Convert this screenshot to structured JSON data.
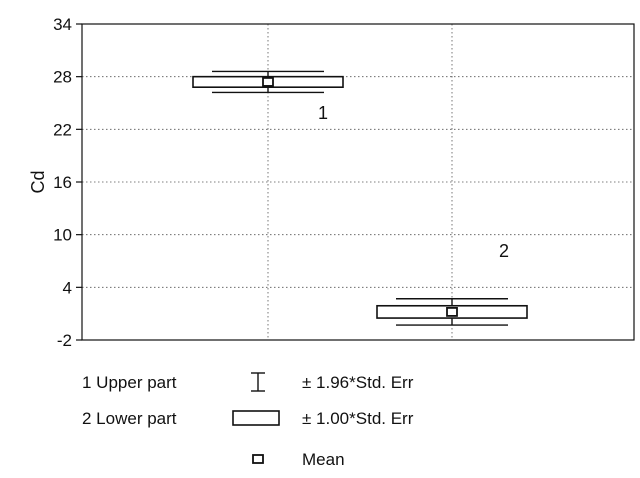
{
  "chart_data": {
    "type": "box",
    "ylabel": "Cd",
    "xlabel": "",
    "title": "",
    "ylim": [
      -2,
      34
    ],
    "yticks": [
      -2,
      4,
      10,
      16,
      22,
      28,
      34
    ],
    "grid": true,
    "groups": [
      {
        "id": "1",
        "name": "Upper part",
        "mean": 27.4,
        "se_low": 26.8,
        "se_high": 28.0,
        "ci_low": 26.2,
        "ci_high": 28.6,
        "label": "1"
      },
      {
        "id": "2",
        "name": "Lower part",
        "mean": 1.2,
        "se_low": 0.5,
        "se_high": 1.9,
        "ci_low": -0.3,
        "ci_high": 2.7,
        "label": "2"
      }
    ],
    "legend": {
      "placement": "bottom",
      "whisker_text": "± 1.96*Std. Err",
      "box_text": "± 1.00*Std. Err",
      "mean_text": "Mean",
      "group_entries": [
        "1 Upper part",
        "2 Lower part"
      ]
    }
  }
}
